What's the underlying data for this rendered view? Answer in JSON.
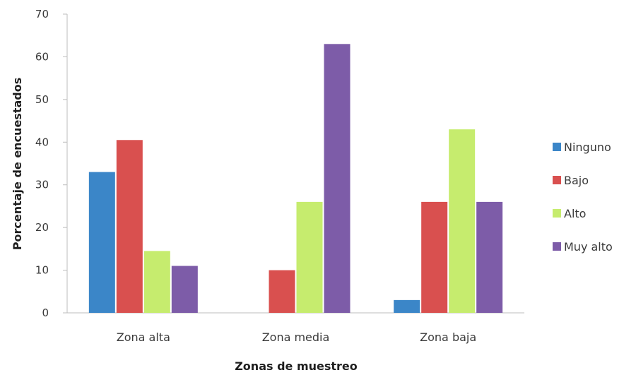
{
  "chart_data": {
    "type": "bar",
    "categories": [
      "Zona alta",
      "Zona media",
      "Zona baja"
    ],
    "series": [
      {
        "name": "Ninguno",
        "values": [
          33,
          0,
          3
        ],
        "color": "#3b86c8"
      },
      {
        "name": "Bajo",
        "values": [
          40.5,
          10,
          26
        ],
        "color": "#d9504f"
      },
      {
        "name": "Alto",
        "values": [
          14.5,
          26,
          43
        ],
        "color": "#c6ec6e"
      },
      {
        "name": "Muy alto",
        "values": [
          11,
          63,
          26
        ],
        "color": "#7d5ca8"
      }
    ],
    "title": "",
    "xlabel": "Zonas de muestreo",
    "ylabel": "Porcentaje de encuestados",
    "ylim": [
      0,
      70
    ],
    "yticks": [
      0,
      10,
      20,
      30,
      40,
      50,
      60,
      70
    ],
    "legend": "right",
    "grid": false
  }
}
